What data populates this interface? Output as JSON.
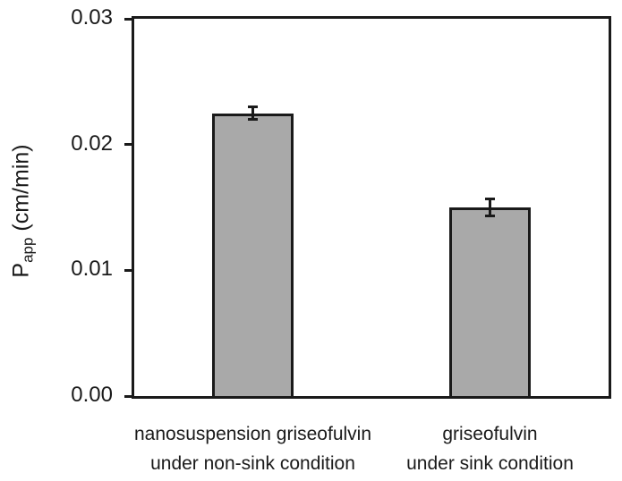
{
  "figure": {
    "background": "#ffffff"
  },
  "chart_data": {
    "type": "bar",
    "title": "",
    "categories": [
      [
        "nanosuspension griseofulvin",
        "under non-sink condition"
      ],
      [
        "griseofulvin",
        "under sink condition"
      ]
    ],
    "values": [
      0.0225,
      0.015
    ],
    "error_bars": [
      0.0006,
      0.0008
    ],
    "ylabel": "Papp (cm/min)",
    "ylabel_parts": {
      "main": "P",
      "sub": "app",
      "rest": " (cm/min)"
    },
    "xlabel": "",
    "ylim": [
      0,
      0.03
    ],
    "yticks": [
      0,
      0.01,
      0.02,
      0.03
    ],
    "ytick_labels": [
      "0.00",
      "0.01",
      "0.02",
      "0.03"
    ],
    "grid": false,
    "legend": "none",
    "bar_color": "#a9a9a9",
    "bar_edge_color": "#1a1a1a",
    "axis_color": "#1a1a1a"
  }
}
